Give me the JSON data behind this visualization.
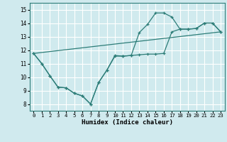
{
  "xlabel": "Humidex (Indice chaleur)",
  "ylabel": "",
  "background_color": "#d0eaee",
  "grid_color": "#ffffff",
  "line_color": "#2d7d78",
  "xlim": [
    -0.5,
    23.5
  ],
  "ylim": [
    7.5,
    15.5
  ],
  "xticks": [
    0,
    1,
    2,
    3,
    4,
    5,
    6,
    7,
    8,
    9,
    10,
    11,
    12,
    13,
    14,
    15,
    16,
    17,
    18,
    19,
    20,
    21,
    22,
    23
  ],
  "yticks": [
    8,
    9,
    10,
    11,
    12,
    13,
    14,
    15
  ],
  "curve1_x": [
    0,
    1,
    2,
    3,
    4,
    5,
    6,
    7,
    8,
    9,
    10,
    11,
    12,
    13,
    14,
    15,
    16,
    17,
    18,
    19,
    20,
    21,
    22,
    23
  ],
  "curve1_y": [
    11.75,
    11.0,
    10.1,
    9.25,
    9.2,
    8.8,
    8.6,
    8.0,
    9.6,
    10.5,
    11.6,
    11.55,
    11.6,
    13.3,
    13.9,
    14.75,
    14.75,
    14.45,
    13.55,
    13.55,
    13.6,
    14.0,
    14.0,
    13.35
  ],
  "curve2_x": [
    0,
    1,
    2,
    3,
    4,
    5,
    6,
    7,
    8,
    9,
    10,
    11,
    12,
    13,
    14,
    15,
    16,
    17,
    18,
    19,
    20,
    21,
    22,
    23
  ],
  "curve2_y": [
    11.75,
    11.0,
    10.1,
    9.25,
    9.2,
    8.8,
    8.6,
    8.0,
    9.6,
    10.5,
    11.55,
    11.55,
    11.6,
    11.65,
    11.7,
    11.7,
    11.75,
    13.35,
    13.55,
    13.55,
    13.6,
    14.0,
    14.0,
    13.35
  ],
  "curve3_x": [
    0,
    23
  ],
  "curve3_y": [
    11.75,
    13.35
  ]
}
